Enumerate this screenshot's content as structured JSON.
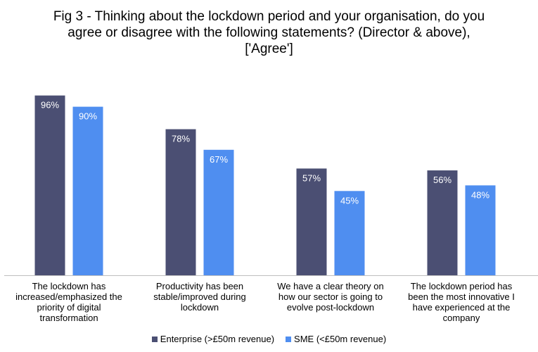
{
  "chart_data": {
    "type": "bar",
    "title": "Fig 3 - Thinking about the lockdown period and your organisation, do you agree or disagree with the following statements? (Director & above), ['Agree']",
    "categories": [
      "The lockdown has increased/emphasized the priority of digital transformation",
      "Productivity has been stable/improved during lockdown",
      "We have a clear theory on how our sector is going to evolve post-lockdown",
      "The lockdown period has been the most innovative I have experienced at the company"
    ],
    "series": [
      {
        "name": "Enterprise (>£50m revenue)",
        "color": "#4b4f73",
        "values": [
          96,
          78,
          57,
          56
        ],
        "labels": [
          "96%",
          "78%",
          "57%",
          "56%"
        ]
      },
      {
        "name": "SME  (<£50m revenue)",
        "color": "#4f8ef0",
        "values": [
          90,
          67,
          45,
          48
        ],
        "labels": [
          "90%",
          "67%",
          "45%",
          "48%"
        ]
      }
    ],
    "ylim": [
      0,
      100
    ],
    "xlabel": "",
    "ylabel": "",
    "legend": "bottom",
    "grid": false
  }
}
